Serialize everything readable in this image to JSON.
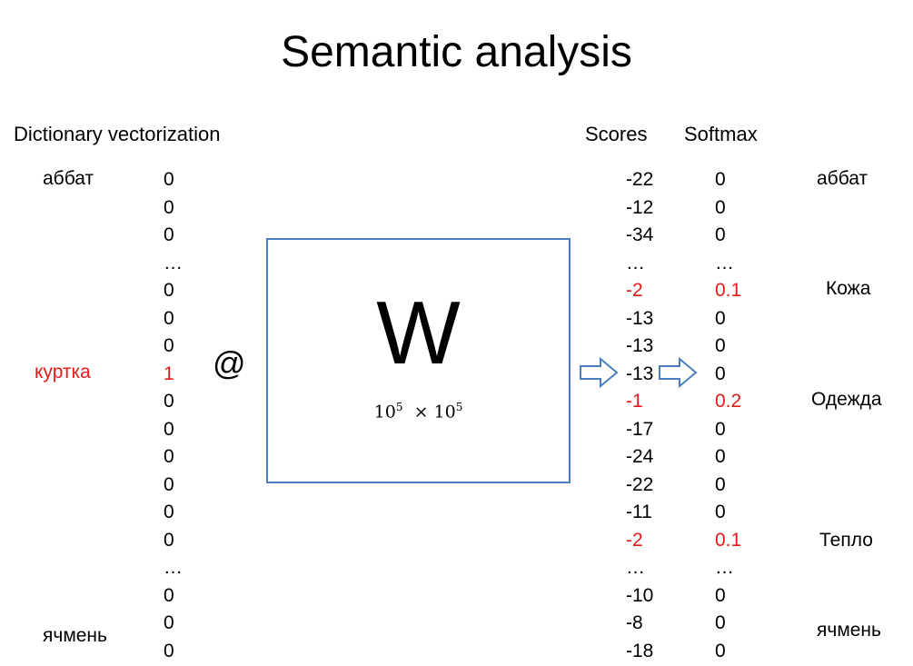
{
  "title": "Semantic analysis",
  "headings": {
    "vectorization": "Dictionary vectorization",
    "scores": "Scores",
    "softmax": "Softmax"
  },
  "input_words": {
    "first": "аббат",
    "active": "куртка",
    "last": "ячмень"
  },
  "one_hot": [
    "0",
    "0",
    "0",
    "…",
    "0",
    "0",
    "0",
    "1",
    "0",
    "0",
    "0",
    "0",
    "0",
    "0",
    "…",
    "0",
    "0",
    "0"
  ],
  "operator": "@",
  "matrix": {
    "symbol": "W",
    "rows_base": "10",
    "rows_exp": "5",
    "times": "×",
    "cols_base": "10",
    "cols_exp": "5"
  },
  "scores": [
    "-22",
    "-12",
    "-34",
    "…",
    "-2",
    "-13",
    "-13",
    "-13",
    "-1",
    "-17",
    "-24",
    "-22",
    "-11",
    "-2",
    "…",
    "-10",
    "-8",
    "-18"
  ],
  "softmax": [
    "0",
    "0",
    "0",
    "…",
    "0.1",
    "0",
    "0",
    "0",
    "0.2",
    "0",
    "0",
    "0",
    "0",
    "0.1",
    "…",
    "0",
    "0",
    "0"
  ],
  "output_words": {
    "first": "аббат",
    "second": "Кожа",
    "third": "Одежда",
    "fourth": "Тепло",
    "last": "ячмень"
  },
  "colors": {
    "highlight": "#e31a1a",
    "box_border": "#4a7ebf",
    "arrow_fill": "#ffffff"
  },
  "icons": [
    "right-arrow-icon",
    "right-arrow-icon"
  ]
}
